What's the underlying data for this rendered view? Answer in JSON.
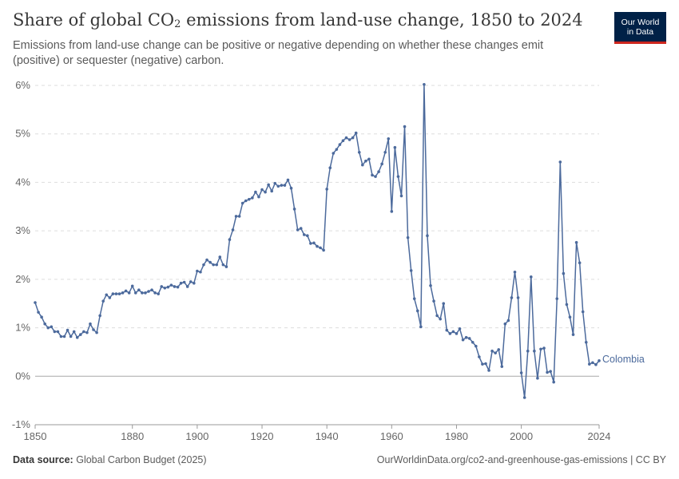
{
  "header": {
    "title_main": "Share of global CO",
    "title_sub": "2",
    "title_rest": " emissions from land-use change, 1850 to 2024",
    "subtitle": "Emissions from land-use change can be positive or negative depending on whether these changes emit (positive) or sequester (negative) carbon.",
    "logo_line1": "Our World",
    "logo_line2": "in Data"
  },
  "footer": {
    "source_label": "Data source:",
    "source_text": "Global Carbon Budget (2025)",
    "url_text": "OurWorldinData.org/co2-and-greenhouse-gas-emissions | CC BY"
  },
  "colors": {
    "line": "#4c6a9c",
    "grid": "#dddddd",
    "zero_line": "#a8a8a8",
    "axis_text": "#666666",
    "logo_bg": "#002147",
    "logo_accent": "#ce261e"
  },
  "chart_data": {
    "type": "line",
    "title": "Share of global CO₂ emissions from land-use change, 1850 to 2024",
    "ylim": [
      -1,
      6
    ],
    "y_ticks": [
      -1,
      0,
      1,
      2,
      3,
      4,
      5,
      6
    ],
    "y_tick_labels": [
      "-1%",
      "0%",
      "1%",
      "2%",
      "3%",
      "4%",
      "5%",
      "6%"
    ],
    "x_ticks": [
      1850,
      1880,
      1900,
      1920,
      1940,
      1960,
      1980,
      2000,
      2024
    ],
    "x_tick_labels": [
      "1850",
      "1880",
      "1900",
      "1920",
      "1940",
      "1960",
      "1980",
      "2000",
      "2024"
    ],
    "xlim": [
      1850,
      2024
    ],
    "grid": true,
    "series": [
      {
        "name": "Colombia",
        "x": [
          1850,
          1851,
          1852,
          1853,
          1854,
          1855,
          1856,
          1857,
          1858,
          1859,
          1860,
          1861,
          1862,
          1863,
          1864,
          1865,
          1866,
          1867,
          1868,
          1869,
          1870,
          1871,
          1872,
          1873,
          1874,
          1875,
          1876,
          1877,
          1878,
          1879,
          1880,
          1881,
          1882,
          1883,
          1884,
          1885,
          1886,
          1887,
          1888,
          1889,
          1890,
          1891,
          1892,
          1893,
          1894,
          1895,
          1896,
          1897,
          1898,
          1899,
          1900,
          1901,
          1902,
          1903,
          1904,
          1905,
          1906,
          1907,
          1908,
          1909,
          1910,
          1911,
          1912,
          1913,
          1914,
          1915,
          1916,
          1917,
          1918,
          1919,
          1920,
          1921,
          1922,
          1923,
          1924,
          1925,
          1926,
          1927,
          1928,
          1929,
          1930,
          1931,
          1932,
          1933,
          1934,
          1935,
          1936,
          1937,
          1938,
          1939,
          1940,
          1941,
          1942,
          1943,
          1944,
          1945,
          1946,
          1947,
          1948,
          1949,
          1950,
          1951,
          1952,
          1953,
          1954,
          1955,
          1956,
          1957,
          1958,
          1959,
          1960,
          1961,
          1962,
          1963,
          1964,
          1965,
          1966,
          1967,
          1968,
          1969,
          1970,
          1971,
          1972,
          1973,
          1974,
          1975,
          1976,
          1977,
          1978,
          1979,
          1980,
          1981,
          1982,
          1983,
          1984,
          1985,
          1986,
          1987,
          1988,
          1989,
          1990,
          1991,
          1992,
          1993,
          1994,
          1995,
          1996,
          1997,
          1998,
          1999,
          2000,
          2001,
          2002,
          2003,
          2004,
          2005,
          2006,
          2007,
          2008,
          2009,
          2010,
          2011,
          2012,
          2013,
          2014,
          2015,
          2016,
          2017,
          2018,
          2019,
          2020,
          2021,
          2022,
          2023,
          2024
        ],
        "values": [
          1.52,
          1.32,
          1.22,
          1.08,
          1.0,
          1.02,
          0.92,
          0.92,
          0.82,
          0.82,
          0.95,
          0.82,
          0.92,
          0.8,
          0.86,
          0.92,
          0.9,
          1.08,
          0.96,
          0.9,
          1.25,
          1.55,
          1.68,
          1.62,
          1.7,
          1.7,
          1.7,
          1.72,
          1.76,
          1.72,
          1.86,
          1.72,
          1.78,
          1.72,
          1.72,
          1.75,
          1.78,
          1.72,
          1.7,
          1.85,
          1.82,
          1.84,
          1.88,
          1.85,
          1.84,
          1.92,
          1.94,
          1.85,
          1.95,
          1.92,
          2.17,
          2.15,
          2.3,
          2.4,
          2.35,
          2.3,
          2.3,
          2.46,
          2.3,
          2.26,
          2.82,
          3.02,
          3.3,
          3.3,
          3.57,
          3.62,
          3.65,
          3.68,
          3.8,
          3.7,
          3.85,
          3.8,
          3.95,
          3.82,
          3.98,
          3.92,
          3.94,
          3.94,
          4.05,
          3.88,
          3.45,
          3.02,
          3.05,
          2.92,
          2.9,
          2.74,
          2.75,
          2.68,
          2.65,
          2.6,
          3.86,
          4.3,
          4.6,
          4.68,
          4.78,
          4.86,
          4.92,
          4.88,
          4.92,
          5.02,
          4.62,
          4.36,
          4.44,
          4.48,
          4.15,
          4.12,
          4.22,
          4.38,
          4.62,
          4.9,
          3.4,
          4.72,
          4.12,
          3.72,
          5.15,
          2.86,
          2.18,
          1.6,
          1.35,
          1.02,
          6.02,
          2.9,
          1.87,
          1.55,
          1.25,
          1.18,
          1.5,
          0.95,
          0.88,
          0.92,
          0.88,
          0.98,
          0.75,
          0.8,
          0.78,
          0.7,
          0.62,
          0.4,
          0.25,
          0.26,
          0.12,
          0.52,
          0.48,
          0.55,
          0.2,
          1.08,
          1.15,
          1.62,
          2.15,
          1.62,
          0.07,
          -0.44,
          0.52,
          2.05,
          0.52,
          -0.04,
          0.56,
          0.58,
          0.08,
          0.1,
          -0.12,
          1.6,
          4.42,
          2.12,
          1.48,
          1.22,
          0.86,
          2.76,
          2.34,
          1.33,
          0.7,
          0.25,
          0.28,
          0.24,
          0.32
        ]
      }
    ]
  }
}
